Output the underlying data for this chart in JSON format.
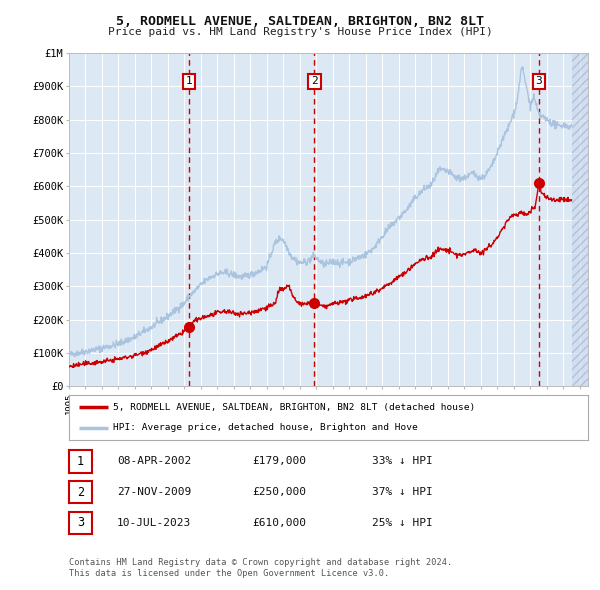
{
  "title": "5, RODMELL AVENUE, SALTDEAN, BRIGHTON, BN2 8LT",
  "subtitle": "Price paid vs. HM Land Registry's House Price Index (HPI)",
  "bg_color": "#ffffff",
  "plot_bg_color": "#dce9f5",
  "grid_color": "#ffffff",
  "hpi_color": "#aac4e0",
  "price_color": "#cc0000",
  "vline_color": "#cc0000",
  "sale1_date": 2002.27,
  "sale1_price": 179000,
  "sale2_date": 2009.9,
  "sale2_price": 250000,
  "sale3_date": 2023.52,
  "sale3_price": 610000,
  "xmin": 1995,
  "xmax": 2026.5,
  "ymin": 0,
  "ymax": 1000000,
  "yticks": [
    0,
    100000,
    200000,
    300000,
    400000,
    500000,
    600000,
    700000,
    800000,
    900000,
    1000000
  ],
  "ytick_labels": [
    "£0",
    "£100K",
    "£200K",
    "£300K",
    "£400K",
    "£500K",
    "£600K",
    "£700K",
    "£800K",
    "£900K",
    "£1M"
  ],
  "xticks": [
    1995,
    1996,
    1997,
    1998,
    1999,
    2000,
    2001,
    2002,
    2003,
    2004,
    2005,
    2006,
    2007,
    2008,
    2009,
    2010,
    2011,
    2012,
    2013,
    2014,
    2015,
    2016,
    2017,
    2018,
    2019,
    2020,
    2021,
    2022,
    2023,
    2024,
    2025,
    2026
  ],
  "legend_price_label": "5, RODMELL AVENUE, SALTDEAN, BRIGHTON, BN2 8LT (detached house)",
  "legend_hpi_label": "HPI: Average price, detached house, Brighton and Hove",
  "table_data": [
    {
      "num": "1",
      "date": "08-APR-2002",
      "price": "£179,000",
      "hpi": "33% ↓ HPI"
    },
    {
      "num": "2",
      "date": "27-NOV-2009",
      "price": "£250,000",
      "hpi": "37% ↓ HPI"
    },
    {
      "num": "3",
      "date": "10-JUL-2023",
      "price": "£610,000",
      "hpi": "25% ↓ HPI"
    }
  ],
  "footnote1": "Contains HM Land Registry data © Crown copyright and database right 2024.",
  "footnote2": "This data is licensed under the Open Government Licence v3.0.",
  "hatch_start": 2025.5
}
